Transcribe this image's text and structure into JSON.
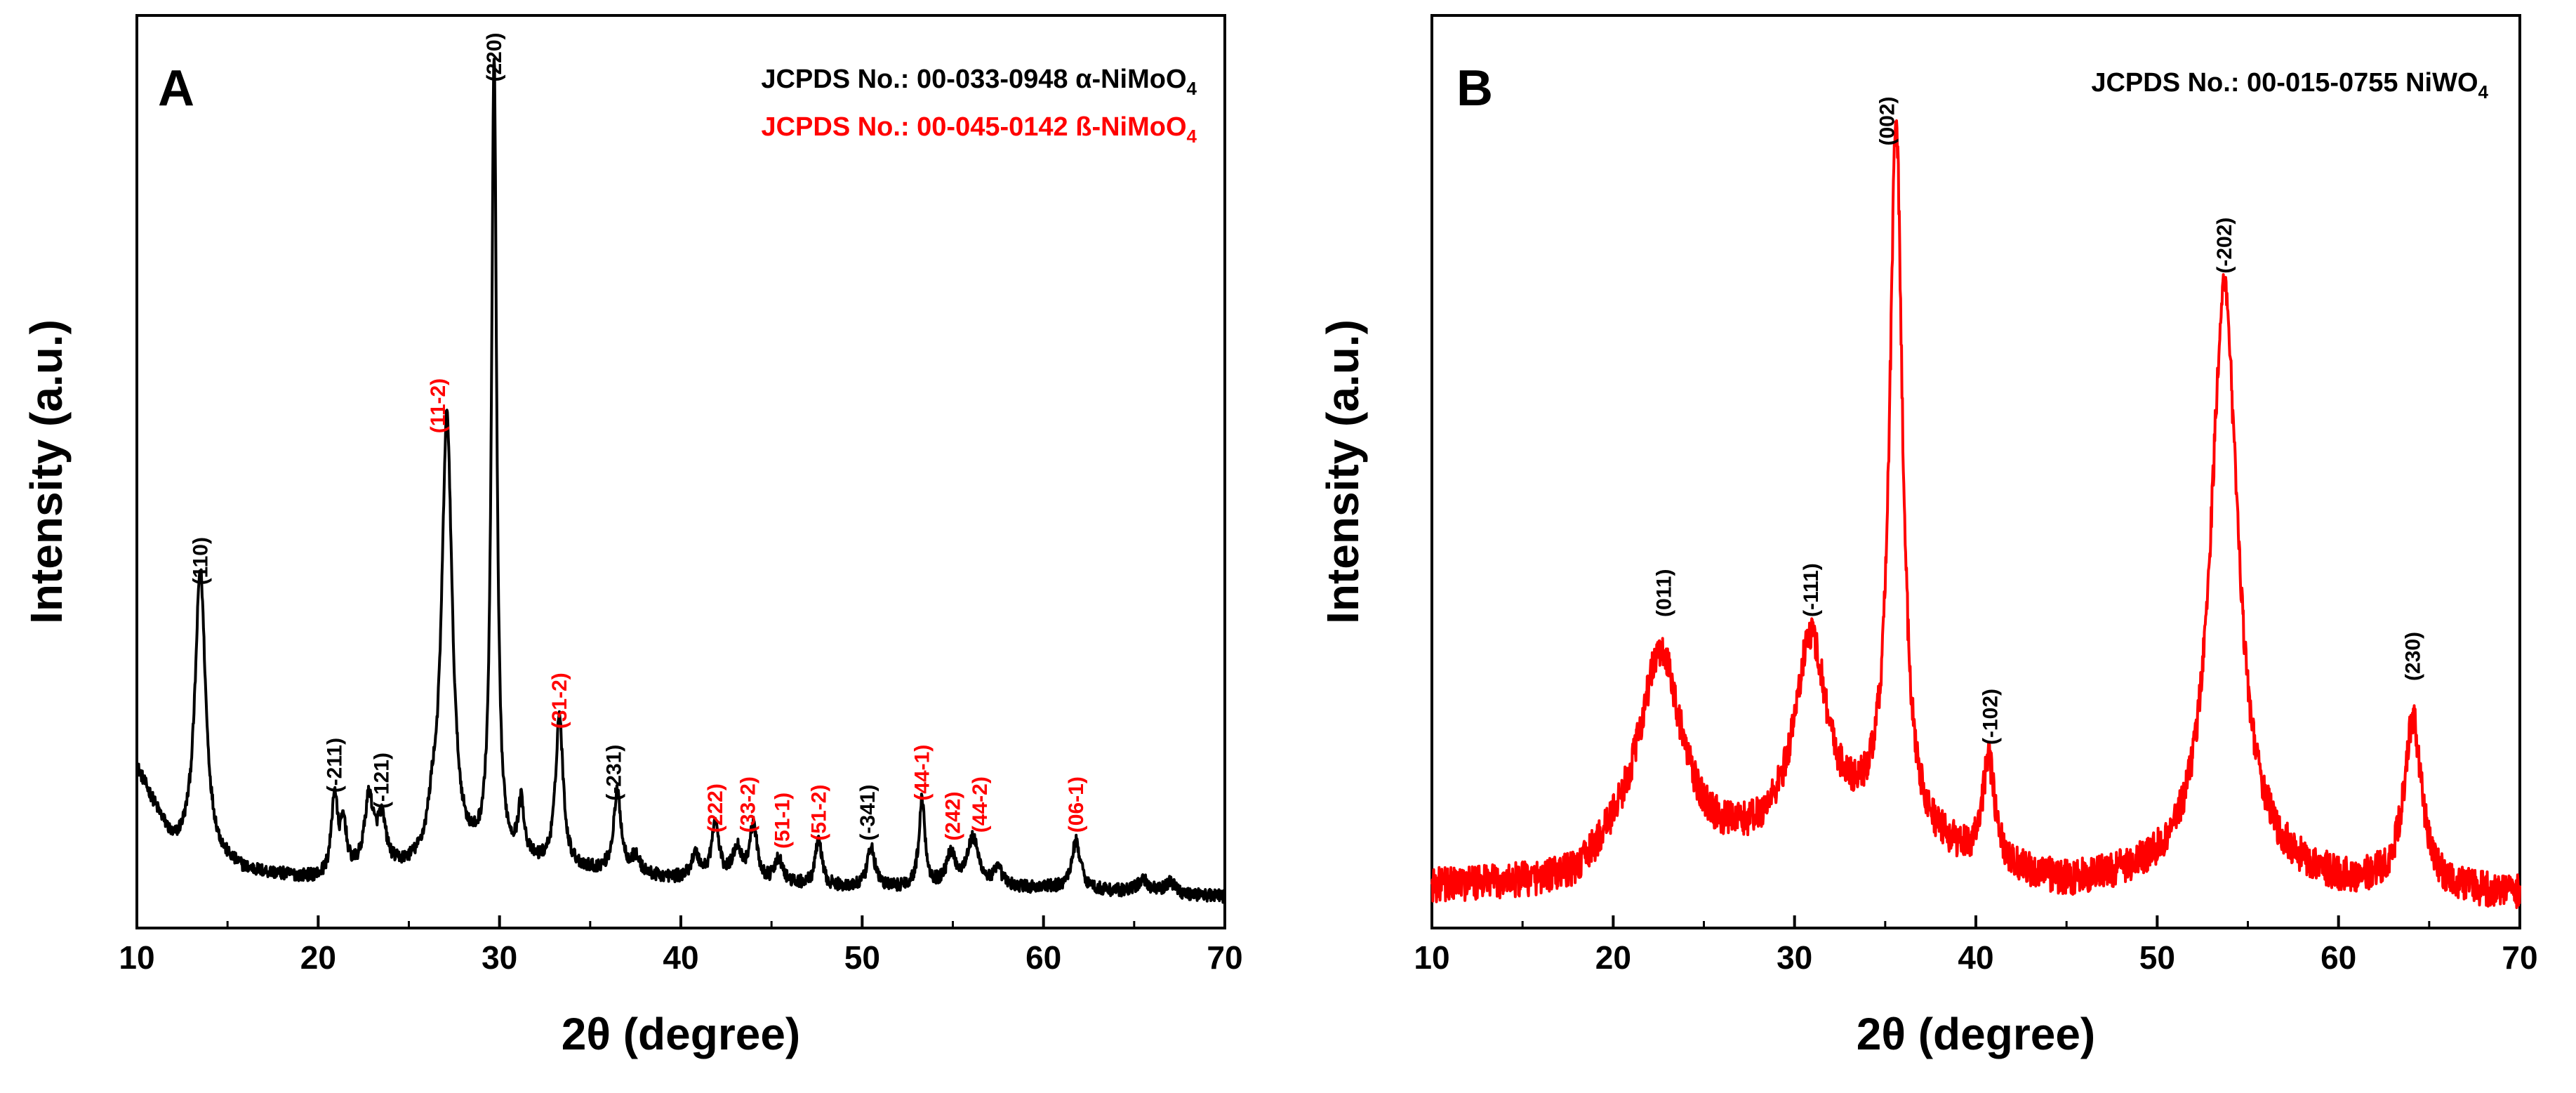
{
  "chart_data": [
    {
      "type": "line",
      "panel": "A",
      "xlabel": "2θ (degree)",
      "ylabel": "Intensity (a.u.)",
      "xlim": [
        10,
        70
      ],
      "ylim": [
        0,
        100
      ],
      "xticks": [
        10,
        20,
        30,
        40,
        50,
        60,
        70
      ],
      "line_color": "#000000",
      "references": [
        {
          "id": "alpha",
          "label": "JCPDS No.: 00-033-0948 α-NiMoO",
          "sub": "4",
          "color": "#000000"
        },
        {
          "id": "beta",
          "label": "JCPDS No.: 00-045-0142 ß-NiMoO",
          "sub": "4",
          "color": "#ff0000"
        }
      ],
      "baseline": [
        [
          10,
          18
        ],
        [
          12,
          8
        ],
        [
          16,
          5
        ],
        [
          20,
          4
        ],
        [
          25,
          5
        ],
        [
          30,
          6
        ],
        [
          35,
          5
        ],
        [
          40,
          4
        ],
        [
          50,
          3
        ],
        [
          60,
          3
        ],
        [
          70,
          2
        ]
      ],
      "peaks": [
        {
          "x": 13.5,
          "h": 36,
          "w": 0.35
        },
        {
          "x": 20.9,
          "h": 10,
          "w": 0.2
        },
        {
          "x": 21.4,
          "h": 6,
          "w": 0.2
        },
        {
          "x": 22.8,
          "h": 9,
          "w": 0.3
        },
        {
          "x": 23.5,
          "h": 6,
          "w": 0.3
        },
        {
          "x": 26.3,
          "h": 4,
          "w": 0.3
        },
        {
          "x": 27.1,
          "h": 56,
          "w": 0.35
        },
        {
          "x": 29.7,
          "h": 100,
          "w": 0.17
        },
        {
          "x": 31.2,
          "h": 7,
          "w": 0.2
        },
        {
          "x": 33.3,
          "h": 19,
          "w": 0.25
        },
        {
          "x": 36.5,
          "h": 10,
          "w": 0.25
        },
        {
          "x": 37.5,
          "h": 2,
          "w": 0.3
        },
        {
          "x": 40.8,
          "h": 3,
          "w": 0.3
        },
        {
          "x": 41.9,
          "h": 7,
          "w": 0.25
        },
        {
          "x": 43.1,
          "h": 4,
          "w": 0.3
        },
        {
          "x": 44.0,
          "h": 7,
          "w": 0.25
        },
        {
          "x": 45.4,
          "h": 3,
          "w": 0.25
        },
        {
          "x": 47.6,
          "h": 6,
          "w": 0.2
        },
        {
          "x": 50.5,
          "h": 5,
          "w": 0.25
        },
        {
          "x": 53.3,
          "h": 11,
          "w": 0.2
        },
        {
          "x": 54.9,
          "h": 4,
          "w": 0.3
        },
        {
          "x": 56.1,
          "h": 6,
          "w": 0.4
        },
        {
          "x": 57.5,
          "h": 2,
          "w": 0.3
        },
        {
          "x": 61.8,
          "h": 6,
          "w": 0.3
        },
        {
          "x": 65.5,
          "h": 1.5,
          "w": 0.4
        },
        {
          "x": 67.0,
          "h": 1.5,
          "w": 0.3
        }
      ],
      "noise": 0.8,
      "peak_labels": [
        {
          "text": "(110)",
          "x": 13.5,
          "y": 41,
          "color": "#000000"
        },
        {
          "text": "(-211)",
          "x": 20.9,
          "y": 15,
          "color": "#000000"
        },
        {
          "text": "(-121)",
          "x": 23.5,
          "y": 13,
          "color": "#000000"
        },
        {
          "text": "(11-2)",
          "x": 26.6,
          "y": 60,
          "color": "#ff0000"
        },
        {
          "text": "(220)",
          "x": 29.7,
          "y": 104,
          "color": "#000000"
        },
        {
          "text": "(31-2)",
          "x": 33.3,
          "y": 23,
          "color": "#ff0000"
        },
        {
          "text": "(-231)",
          "x": 36.3,
          "y": 14,
          "color": "#000000"
        },
        {
          "text": "(222)",
          "x": 41.9,
          "y": 10,
          "color": "#ff0000"
        },
        {
          "text": "(33-2)",
          "x": 43.7,
          "y": 10,
          "color": "#ff0000"
        },
        {
          "text": "(51-1)",
          "x": 45.6,
          "y": 8,
          "color": "#ff0000"
        },
        {
          "text": "(51-2)",
          "x": 47.6,
          "y": 9,
          "color": "#ff0000"
        },
        {
          "text": "(-341)",
          "x": 50.3,
          "y": 9,
          "color": "#000000"
        },
        {
          "text": "(44-1)",
          "x": 53.3,
          "y": 14,
          "color": "#ff0000"
        },
        {
          "text": "(242)",
          "x": 55.0,
          "y": 9,
          "color": "#ff0000"
        },
        {
          "text": "(44-2)",
          "x": 56.5,
          "y": 10,
          "color": "#ff0000"
        },
        {
          "text": "(06-1)",
          "x": 61.8,
          "y": 10,
          "color": "#ff0000"
        }
      ]
    },
    {
      "type": "line",
      "panel": "B",
      "xlabel": "2θ (degree)",
      "ylabel": "Intensity (a.u.)",
      "xlim": [
        10,
        70
      ],
      "ylim": [
        0,
        100
      ],
      "xticks": [
        10,
        20,
        30,
        40,
        50,
        60,
        70
      ],
      "line_color": "#ff0000",
      "references": [
        {
          "id": "niwo4",
          "label": "JCPDS No.: 00-015-0755 NiWO",
          "sub": "4",
          "color": "#000000"
        }
      ],
      "baseline": [
        [
          10,
          3
        ],
        [
          15,
          3
        ],
        [
          18,
          3
        ],
        [
          20,
          6
        ],
        [
          25,
          6
        ],
        [
          30,
          8
        ],
        [
          35,
          10
        ],
        [
          40,
          5
        ],
        [
          45,
          3
        ],
        [
          50,
          4
        ],
        [
          55,
          5
        ],
        [
          60,
          3
        ],
        [
          70,
          2
        ]
      ],
      "peaks": [
        {
          "x": 22.6,
          "h": 26,
          "w": 1.5
        },
        {
          "x": 30.9,
          "h": 25,
          "w": 1.1
        },
        {
          "x": 35.6,
          "h": 88,
          "w": 0.42
        },
        {
          "x": 40.7,
          "h": 13,
          "w": 0.45
        },
        {
          "x": 53.7,
          "h": 73,
          "w": 0.9
        },
        {
          "x": 64.1,
          "h": 21,
          "w": 0.6
        }
      ],
      "noise": 2.2,
      "peak_labels": [
        {
          "text": "(011)",
          "x": 22.8,
          "y": 37,
          "color": "#000000"
        },
        {
          "text": "(-111)",
          "x": 30.9,
          "y": 37,
          "color": "#000000"
        },
        {
          "text": "(002)",
          "x": 35.1,
          "y": 96,
          "color": "#000000"
        },
        {
          "text": "(-102)",
          "x": 40.8,
          "y": 21,
          "color": "#000000"
        },
        {
          "text": "(-202)",
          "x": 53.7,
          "y": 80,
          "color": "#000000"
        },
        {
          "text": "(230)",
          "x": 64.1,
          "y": 29,
          "color": "#000000"
        }
      ]
    }
  ]
}
